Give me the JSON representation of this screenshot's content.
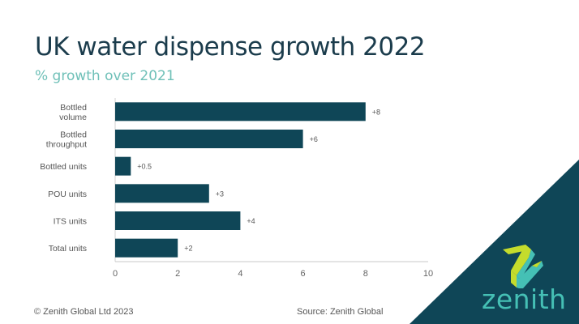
{
  "title": "UK water dispense growth 2022",
  "subtitle": "% growth over 2021",
  "footer": {
    "copyright": "© Zenith Global Ltd 2023",
    "source": "Source: Zenith Global"
  },
  "logo": {
    "text": "zenith",
    "icon": "zenith-z-icon"
  },
  "colors": {
    "bar": "#0f4657",
    "title": "#1b3c4c",
    "subtitle": "#6fc0b8",
    "corner": "#0f4657",
    "logo_green": "#c4dc2c",
    "logo_teal": "#45c0b5"
  },
  "chart_data": {
    "type": "bar",
    "orientation": "horizontal",
    "title": "UK water dispense growth 2022",
    "subtitle": "% growth over 2021",
    "xlabel": "",
    "ylabel": "",
    "categories": [
      [
        "Bottled",
        "volume"
      ],
      [
        "Bottled",
        "throughput"
      ],
      [
        "Bottled units"
      ],
      [
        "POU units"
      ],
      [
        "ITS units"
      ],
      [
        "Total units"
      ]
    ],
    "values": [
      8,
      6,
      0.5,
      3,
      4,
      2
    ],
    "data_labels": [
      "+8",
      "+6",
      "+0.5",
      "+3",
      "+4",
      "+2"
    ],
    "xlim": [
      0,
      10
    ],
    "xticks": [
      0,
      2,
      4,
      6,
      8,
      10
    ],
    "xtick_labels": [
      "0",
      "2",
      "4",
      "6",
      "8",
      "10"
    ],
    "grid": false,
    "legend": "none"
  }
}
